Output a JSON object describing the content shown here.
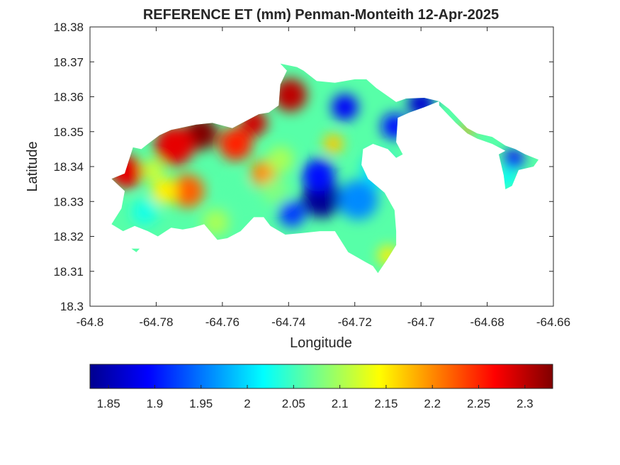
{
  "chart_data": {
    "type": "heatmap",
    "title": "REFERENCE ET (mm) Penman-Monteith 12-Apr-2025",
    "xlabel": "Longitude",
    "ylabel": "Latitude",
    "xlim": [
      -64.8,
      -64.66
    ],
    "ylim": [
      18.3,
      18.38
    ],
    "xticks": [
      "-64.8",
      "-64.78",
      "-64.76",
      "-64.74",
      "-64.72",
      "-64.7",
      "-64.68",
      "-64.66"
    ],
    "yticks": [
      "18.3",
      "18.31",
      "18.32",
      "18.33",
      "18.34",
      "18.35",
      "18.36",
      "18.37",
      "18.38"
    ],
    "colormap": "jet",
    "colorbar": {
      "orientation": "horizontal",
      "location": "bottom",
      "range": [
        1.83,
        2.33
      ],
      "ticks": [
        "1.85",
        "1.9",
        "1.95",
        "2",
        "2.05",
        "2.1",
        "2.15",
        "2.2",
        "2.25",
        "2.3"
      ]
    },
    "grid": false,
    "landmass_outline": [
      [
        -64.7935,
        18.3365
      ],
      [
        -64.7895,
        18.338
      ],
      [
        -64.787,
        18.3455
      ],
      [
        -64.7845,
        18.345
      ],
      [
        -64.7825,
        18.3465
      ],
      [
        -64.779,
        18.349
      ],
      [
        -64.7755,
        18.3505
      ],
      [
        -64.768,
        18.352
      ],
      [
        -64.763,
        18.3525
      ],
      [
        -64.757,
        18.351
      ],
      [
        -64.752,
        18.3535
      ],
      [
        -64.749,
        18.355
      ],
      [
        -64.746,
        18.3555
      ],
      [
        -64.743,
        18.3575
      ],
      [
        -64.7425,
        18.3635
      ],
      [
        -64.7405,
        18.3675
      ],
      [
        -64.7425,
        18.3695
      ],
      [
        -64.7375,
        18.3685
      ],
      [
        -64.7355,
        18.3675
      ],
      [
        -64.7315,
        18.3645
      ],
      [
        -64.726,
        18.364
      ],
      [
        -64.72,
        18.365
      ],
      [
        -64.7165,
        18.365
      ],
      [
        -64.7135,
        18.3625
      ],
      [
        -64.7075,
        18.3585
      ],
      [
        -64.7045,
        18.3595
      ],
      [
        -64.699,
        18.3597
      ],
      [
        -64.6945,
        18.3587
      ],
      [
        -64.699,
        18.357
      ],
      [
        -64.7035,
        18.3555
      ],
      [
        -64.707,
        18.354
      ],
      [
        -64.7075,
        18.347
      ],
      [
        -64.7055,
        18.3435
      ],
      [
        -64.7075,
        18.3425
      ],
      [
        -64.71,
        18.345
      ],
      [
        -64.7145,
        18.3465
      ],
      [
        -64.7175,
        18.345
      ],
      [
        -64.718,
        18.3405
      ],
      [
        -64.716,
        18.3365
      ],
      [
        -64.711,
        18.3325
      ],
      [
        -64.708,
        18.3275
      ],
      [
        -64.7075,
        18.3215
      ],
      [
        -64.7075,
        18.3175
      ],
      [
        -64.7105,
        18.313
      ],
      [
        -64.713,
        18.3095
      ],
      [
        -64.7145,
        18.3115
      ],
      [
        -64.7165,
        18.3125
      ],
      [
        -64.722,
        18.3155
      ],
      [
        -64.726,
        18.3215
      ],
      [
        -64.7305,
        18.3215
      ],
      [
        -64.7355,
        18.321
      ],
      [
        -64.741,
        18.3205
      ],
      [
        -64.7455,
        18.323
      ],
      [
        -64.7475,
        18.3255
      ],
      [
        -64.7505,
        18.3255
      ],
      [
        -64.7545,
        18.3215
      ],
      [
        -64.7585,
        18.3195
      ],
      [
        -64.7615,
        18.319
      ],
      [
        -64.7655,
        18.3235
      ],
      [
        -64.769,
        18.3225
      ],
      [
        -64.772,
        18.322
      ],
      [
        -64.7755,
        18.3225
      ],
      [
        -64.7795,
        18.32
      ],
      [
        -64.7825,
        18.3215
      ],
      [
        -64.7865,
        18.323
      ],
      [
        -64.79,
        18.3215
      ],
      [
        -64.7935,
        18.3235
      ],
      [
        -64.7905,
        18.328
      ],
      [
        -64.7895,
        18.333
      ],
      [
        -64.7935,
        18.3365
      ]
    ],
    "east_strip_outline": [
      [
        -64.6945,
        18.3587
      ],
      [
        -64.6915,
        18.3565
      ],
      [
        -64.688,
        18.353
      ],
      [
        -64.686,
        18.351
      ],
      [
        -64.683,
        18.3495
      ],
      [
        -64.6785,
        18.3485
      ],
      [
        -64.6745,
        18.346
      ],
      [
        -64.6715,
        18.345
      ],
      [
        -64.6685,
        18.3435
      ],
      [
        -64.6645,
        18.342
      ],
      [
        -64.666,
        18.34
      ],
      [
        -64.6705,
        18.339
      ],
      [
        -64.6725,
        18.3345
      ],
      [
        -64.6745,
        18.3335
      ],
      [
        -64.675,
        18.3375
      ],
      [
        -64.6765,
        18.3435
      ],
      [
        -64.6745,
        18.3445
      ],
      [
        -64.6785,
        18.3465
      ],
      [
        -64.683,
        18.348
      ],
      [
        -64.686,
        18.3495
      ],
      [
        -64.6895,
        18.3525
      ],
      [
        -64.6925,
        18.3555
      ],
      [
        -64.6945,
        18.3575
      ]
    ],
    "islet_outline": [
      [
        -64.7875,
        18.3165
      ],
      [
        -64.785,
        18.3165
      ],
      [
        -64.786,
        18.3155
      ],
      [
        -64.7875,
        18.3165
      ]
    ],
    "et_field_spots": [
      {
        "lon": -64.73,
        "lat": 18.331,
        "value": 1.84,
        "r": 0.006
      },
      {
        "lon": -64.731,
        "lat": 18.3375,
        "value": 1.9,
        "r": 0.005
      },
      {
        "lon": -64.723,
        "lat": 18.357,
        "value": 1.89,
        "r": 0.004
      },
      {
        "lon": -64.708,
        "lat": 18.3515,
        "value": 1.9,
        "r": 0.004
      },
      {
        "lon": -64.7,
        "lat": 18.358,
        "value": 1.87,
        "r": 0.004
      },
      {
        "lon": -64.739,
        "lat": 18.3265,
        "value": 1.92,
        "r": 0.004
      },
      {
        "lon": -64.719,
        "lat": 18.3305,
        "value": 1.96,
        "r": 0.006
      },
      {
        "lon": -64.713,
        "lat": 18.339,
        "value": 2.0,
        "r": 0.005
      },
      {
        "lon": -64.672,
        "lat": 18.342,
        "value": 1.89,
        "r": 0.003
      },
      {
        "lon": -64.674,
        "lat": 18.3365,
        "value": 2.02,
        "r": 0.003
      },
      {
        "lon": -64.686,
        "lat": 18.3505,
        "value": 2.19,
        "r": 0.002
      },
      {
        "lon": -64.6905,
        "lat": 18.344,
        "value": 2.18,
        "r": 0.0015
      },
      {
        "lon": -64.7665,
        "lat": 18.3495,
        "value": 2.33,
        "r": 0.005
      },
      {
        "lon": -64.7745,
        "lat": 18.346,
        "value": 2.28,
        "r": 0.006
      },
      {
        "lon": -64.789,
        "lat": 18.3385,
        "value": 2.28,
        "r": 0.005
      },
      {
        "lon": -64.7395,
        "lat": 18.3605,
        "value": 2.3,
        "r": 0.005
      },
      {
        "lon": -64.7505,
        "lat": 18.3525,
        "value": 2.29,
        "r": 0.004
      },
      {
        "lon": -64.756,
        "lat": 18.3465,
        "value": 2.25,
        "r": 0.005
      },
      {
        "lon": -64.7475,
        "lat": 18.338,
        "value": 2.2,
        "r": 0.004
      },
      {
        "lon": -64.7705,
        "lat": 18.333,
        "value": 2.22,
        "r": 0.005
      },
      {
        "lon": -64.755,
        "lat": 18.3325,
        "value": 2.06,
        "r": 0.004
      },
      {
        "lon": -64.7775,
        "lat": 18.333,
        "value": 2.15,
        "r": 0.004
      },
      {
        "lon": -64.7835,
        "lat": 18.327,
        "value": 2.03,
        "r": 0.004
      },
      {
        "lon": -64.781,
        "lat": 18.339,
        "value": 2.12,
        "r": 0.003
      },
      {
        "lon": -64.762,
        "lat": 18.324,
        "value": 2.1,
        "r": 0.004
      },
      {
        "lon": -64.7265,
        "lat": 18.3465,
        "value": 2.17,
        "r": 0.003
      },
      {
        "lon": -64.744,
        "lat": 18.333,
        "value": 2.08,
        "r": 0.004
      },
      {
        "lon": -64.71,
        "lat": 18.3145,
        "value": 2.15,
        "r": 0.003
      },
      {
        "lon": -64.7425,
        "lat": 18.342,
        "value": 2.1,
        "r": 0.004
      }
    ]
  }
}
